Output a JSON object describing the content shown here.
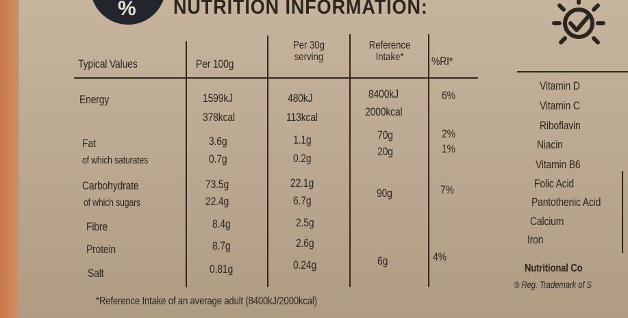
{
  "header": {
    "badge_symbol": "%",
    "title": "NUTRITION INFORMATION:"
  },
  "table": {
    "columns": [
      "Typical Values",
      "Per 100g",
      "Per 30g serving",
      "Reference Intake*",
      "%RI*"
    ],
    "rows": [
      {
        "label": "Energy",
        "per100": "1599kJ",
        "per30": "480kJ",
        "ri": "8400kJ",
        "pct": "6%"
      },
      {
        "label": "",
        "per100": "378kcal",
        "per30": "113kcal",
        "ri": "2000kcal",
        "pct": ""
      },
      {
        "label": "Fat",
        "per100": "3.6g",
        "per30": "1.1g",
        "ri": "70g",
        "pct": "2%"
      },
      {
        "label": "of which saturates",
        "per100": "0.7g",
        "per30": "0.2g",
        "ri": "20g",
        "pct": "1%"
      },
      {
        "label": "Carbohydrate",
        "per100": "73.5g",
        "per30": "22.1g",
        "ri": "",
        "pct": ""
      },
      {
        "label": "of which sugars",
        "per100": "22.4g",
        "per30": "6.7g",
        "ri": "90g",
        "pct": "7%"
      },
      {
        "label": "Fibre",
        "per100": "8.4g",
        "per30": "2.5g",
        "ri": "",
        "pct": ""
      },
      {
        "label": "Protein",
        "per100": "8.7g",
        "per30": "2.6g",
        "ri": "",
        "pct": ""
      },
      {
        "label": "Salt",
        "per100": "0.81g",
        "per30": "0.24g",
        "ri": "6g",
        "pct": "4%"
      }
    ]
  },
  "vitamins": [
    "Vitamin D",
    "Vitamin C",
    "Riboflavin",
    "Niacin",
    "Vitamin B6",
    "Folic Acid",
    "Pantothenic Acid",
    "Calcium",
    "Iron"
  ],
  "footnote": "*Reference Intake of an average adult (8400kJ/2000kcal)",
  "side_footer": {
    "heading": "Nutritional Co",
    "trademark": "® Reg. Trademark of S"
  },
  "icons": [
    "percent-badge-icon",
    "sun-checkmark-icon"
  ],
  "colors": {
    "ink": "#2b2620",
    "board": "#bba78f",
    "badge": "#22252c"
  }
}
